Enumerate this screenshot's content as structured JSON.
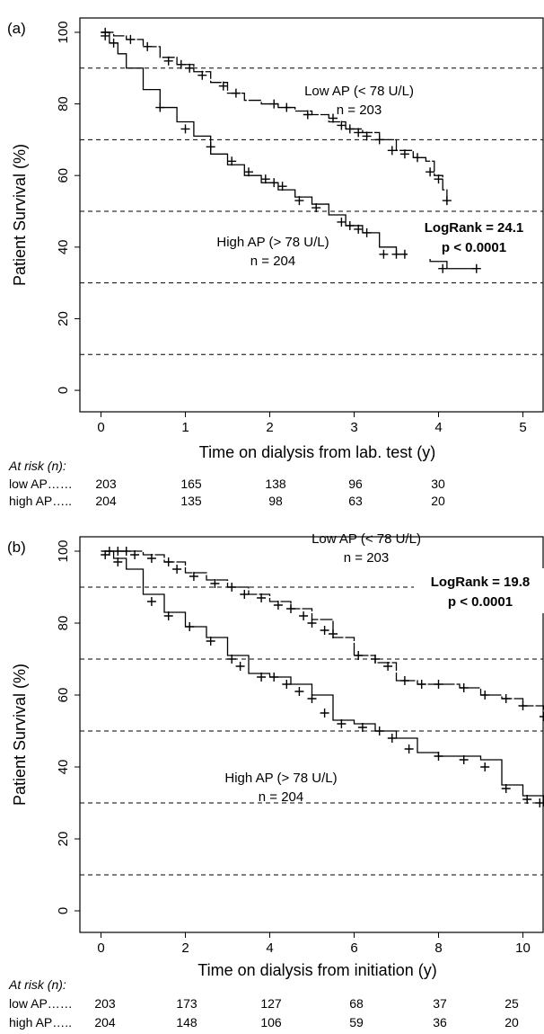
{
  "chart_data": [
    {
      "type": "line",
      "panel_label": "(a)",
      "xlabel": "Time on dialysis from lab. test (y)",
      "ylabel": "Patient Survival (%)",
      "xlim": [
        -0.25,
        5.25
      ],
      "ylim": [
        -6,
        104
      ],
      "xticks": [
        0,
        1,
        2,
        3,
        4,
        5
      ],
      "yticks": [
        0,
        20,
        40,
        60,
        80,
        100
      ],
      "reference_lines": [
        90,
        70,
        50,
        30,
        10
      ],
      "grid": false,
      "series": [
        {
          "label_line1": "Low AP (< 78 U/L)",
          "label_line2": "n = 203",
          "x": [
            0,
            0.15,
            0.3,
            0.5,
            0.7,
            0.9,
            1.1,
            1.3,
            1.5,
            1.7,
            1.9,
            2.1,
            2.3,
            2.5,
            2.7,
            2.9,
            3.1,
            3.3,
            3.5,
            3.7,
            3.85,
            3.95,
            4.05,
            4.1
          ],
          "y": [
            100,
            99,
            98,
            96,
            93,
            91,
            89,
            86,
            83,
            81,
            80,
            79,
            78,
            77,
            75,
            73,
            72,
            70,
            67,
            65,
            64,
            60,
            56,
            52
          ],
          "censor_x": [
            0.05,
            0.35,
            0.55,
            0.8,
            0.95,
            1.05,
            1.2,
            1.45,
            1.6,
            2.05,
            2.2,
            2.45,
            2.75,
            2.85,
            2.95,
            3.05,
            3.15,
            3.3,
            3.45,
            3.6,
            3.75,
            3.9,
            4.0,
            4.1
          ],
          "censor_y": [
            100,
            98,
            96,
            92,
            91,
            90,
            88,
            85,
            83,
            80,
            79,
            77,
            76,
            74,
            73,
            72,
            71,
            70,
            67,
            66,
            65,
            61,
            59,
            53
          ]
        },
        {
          "label_line1": "High AP (> 78 U/L)",
          "label_line2": "n = 204",
          "x": [
            0,
            0.1,
            0.2,
            0.3,
            0.5,
            0.7,
            0.9,
            1.1,
            1.3,
            1.5,
            1.7,
            1.9,
            2.1,
            2.3,
            2.5,
            2.7,
            2.9,
            3.1,
            3.3,
            3.5,
            3.7,
            3.9,
            4.1,
            4.3,
            4.45
          ],
          "y": [
            100,
            97,
            94,
            90,
            84,
            79,
            75,
            71,
            66,
            63,
            60,
            58,
            56,
            54,
            52,
            49,
            46,
            44,
            40,
            38,
            37,
            36,
            34,
            34,
            34
          ],
          "censor_x": [
            0.05,
            0.15,
            0.7,
            1.0,
            1.3,
            1.55,
            1.75,
            1.95,
            2.05,
            2.15,
            2.35,
            2.55,
            2.85,
            2.95,
            3.05,
            3.15,
            3.35,
            3.5,
            3.6,
            3.75,
            4.05,
            4.45
          ],
          "censor_y": [
            99,
            97,
            79,
            73,
            68,
            64,
            61,
            59,
            58,
            57,
            53,
            51,
            47,
            46,
            45,
            44,
            38,
            38,
            38,
            38,
            34,
            34
          ]
        }
      ],
      "stat_line1": "LogRank = 24.1",
      "stat_line2": "p < 0.0001",
      "at_risk": {
        "title": "At risk (n):",
        "rows": [
          {
            "label": "low AP…… ",
            "values": [
              "203",
              "165",
              "138",
              "96",
              "30"
            ]
          },
          {
            "label": "high AP….. ",
            "values": [
              "204",
              "135",
              "98",
              "63",
              "20"
            ]
          }
        ]
      }
    },
    {
      "type": "line",
      "panel_label": "(b)",
      "xlabel": "Time on dialysis from initiation (y)",
      "ylabel": "Patient Survival (%)",
      "xlim": [
        -0.5,
        10.5
      ],
      "ylim": [
        -6,
        104
      ],
      "xticks": [
        0,
        2,
        4,
        6,
        8,
        10
      ],
      "yticks": [
        0,
        20,
        40,
        60,
        80,
        100
      ],
      "reference_lines": [
        90,
        70,
        50,
        30,
        10
      ],
      "grid": false,
      "series": [
        {
          "label_line1": "Low AP (< 78 U/L)",
          "label_line2": "n = 203",
          "x": [
            0,
            0.5,
            1.0,
            1.5,
            2.0,
            2.5,
            3.0,
            3.5,
            4.0,
            4.5,
            5.0,
            5.5,
            6.0,
            6.5,
            7.0,
            7.5,
            8.0,
            8.5,
            9.0,
            9.5,
            10.0,
            10.5
          ],
          "y": [
            100,
            100,
            99,
            97,
            94,
            92,
            90,
            88,
            86,
            84,
            81,
            76,
            71,
            69,
            64,
            63,
            63,
            62,
            60,
            59,
            57,
            54
          ],
          "censor_x": [
            0.2,
            0.4,
            0.6,
            0.8,
            1.2,
            1.6,
            1.8,
            2.2,
            2.7,
            3.1,
            3.4,
            3.8,
            4.2,
            4.5,
            4.8,
            5.0,
            5.3,
            5.5,
            6.1,
            6.5,
            6.8,
            7.2,
            7.6,
            8.0,
            8.6,
            9.1,
            9.6,
            10.0,
            10.5
          ],
          "censor_y": [
            100,
            100,
            100,
            99,
            98,
            97,
            95,
            93,
            91,
            90,
            88,
            87,
            85,
            84,
            82,
            80,
            78,
            77,
            71,
            70,
            68,
            64,
            63,
            63,
            62,
            60,
            59,
            57,
            54
          ]
        },
        {
          "label_line1": "High AP (> 78 U/L)",
          "label_line2": "n = 204",
          "x": [
            0,
            0.3,
            0.6,
            1.0,
            1.5,
            2.0,
            2.5,
            3.0,
            3.5,
            4.0,
            4.5,
            5.0,
            5.5,
            6.0,
            6.5,
            7.0,
            7.5,
            8.0,
            8.5,
            9.0,
            9.5,
            10.0,
            10.5
          ],
          "y": [
            100,
            98,
            95,
            88,
            83,
            79,
            76,
            71,
            66,
            65,
            63,
            60,
            53,
            52,
            50,
            48,
            44,
            43,
            43,
            42,
            35,
            32,
            29
          ],
          "censor_x": [
            0.1,
            0.4,
            1.2,
            1.6,
            2.1,
            2.6,
            3.1,
            3.3,
            3.8,
            4.1,
            4.4,
            4.7,
            5.0,
            5.3,
            5.7,
            6.2,
            6.6,
            6.9,
            7.3,
            8.0,
            8.6,
            9.1,
            9.6,
            10.1,
            10.4
          ],
          "censor_y": [
            99,
            97,
            86,
            82,
            79,
            75,
            70,
            68,
            65,
            65,
            63,
            61,
            59,
            55,
            52,
            51,
            50,
            48,
            45,
            43,
            42,
            40,
            34,
            31,
            30
          ]
        }
      ],
      "stat_line1": "LogRank = 19.8",
      "stat_line2": "p < 0.0001",
      "at_risk": {
        "title": "At risk (n):",
        "rows": [
          {
            "label": "low AP…… ",
            "values": [
              "203",
              "173",
              "127",
              "68",
              "37",
              "25"
            ]
          },
          {
            "label": "high AP….. ",
            "values": [
              "204",
              "148",
              "106",
              "59",
              "36",
              "20"
            ]
          }
        ]
      }
    }
  ]
}
